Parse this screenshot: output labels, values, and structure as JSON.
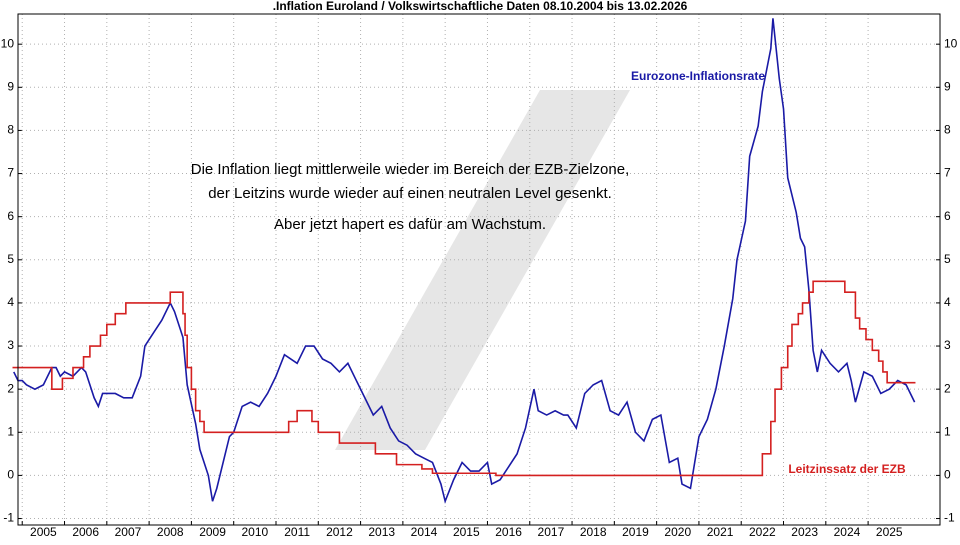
{
  "chart_data": {
    "type": "line",
    "title": ".Inflation Euroland / Volkswirtschaftliche Daten 08.10.2004 bis 13.02.2026",
    "annotations": [
      "Die Inflation liegt mittlerweile wieder im Bereich der EZB-Zielzone,",
      "der Leitzins wurde wieder auf einen neutralen Level gesenkt.",
      "Aber jetzt hapert es dafür am Wachstum."
    ],
    "xlim": [
      2004.9,
      2026.7
    ],
    "xticks": [
      2005,
      2006,
      2007,
      2008,
      2009,
      2010,
      2011,
      2012,
      2013,
      2014,
      2015,
      2016,
      2017,
      2018,
      2019,
      2020,
      2021,
      2022,
      2023,
      2024,
      2025
    ],
    "ylim": [
      -1.15,
      10.7
    ],
    "yticks": [
      -1,
      0,
      1,
      2,
      3,
      4,
      5,
      6,
      7,
      8,
      9,
      10
    ],
    "grid": true,
    "series": [
      {
        "name": "Eurozone-Inflationsrate",
        "color": "#1a1aa6",
        "step": false,
        "x": [
          2004.8,
          2004.9,
          2005.0,
          2005.1,
          2005.3,
          2005.5,
          2005.7,
          2005.8,
          2005.9,
          2006.0,
          2006.2,
          2006.4,
          2006.5,
          2006.7,
          2006.8,
          2006.9,
          2007.2,
          2007.4,
          2007.6,
          2007.8,
          2007.9,
          2008.1,
          2008.3,
          2008.5,
          2008.6,
          2008.8,
          2008.9,
          2009.1,
          2009.2,
          2009.4,
          2009.5,
          2009.6,
          2009.8,
          2009.9,
          2010.0,
          2010.2,
          2010.4,
          2010.6,
          2010.8,
          2011.0,
          2011.2,
          2011.5,
          2011.7,
          2011.9,
          2012.1,
          2012.3,
          2012.5,
          2012.7,
          2012.9,
          2013.1,
          2013.3,
          2013.5,
          2013.7,
          2013.9,
          2014.1,
          2014.3,
          2014.5,
          2014.7,
          2014.9,
          2015.0,
          2015.2,
          2015.4,
          2015.6,
          2015.8,
          2016.0,
          2016.1,
          2016.3,
          2016.5,
          2016.7,
          2016.9,
          2017.1,
          2017.2,
          2017.4,
          2017.6,
          2017.8,
          2017.9,
          2018.1,
          2018.3,
          2018.5,
          2018.7,
          2018.9,
          2019.1,
          2019.3,
          2019.5,
          2019.7,
          2019.9,
          2020.1,
          2020.3,
          2020.5,
          2020.6,
          2020.8,
          2021.0,
          2021.2,
          2021.4,
          2021.6,
          2021.8,
          2021.9,
          2022.1,
          2022.2,
          2022.4,
          2022.5,
          2022.7,
          2022.75,
          2022.9,
          2023.0,
          2023.1,
          2023.3,
          2023.4,
          2023.5,
          2023.6,
          2023.7,
          2023.8,
          2023.9,
          2024.1,
          2024.3,
          2024.5,
          2024.6,
          2024.7,
          2024.9,
          2025.1,
          2025.3,
          2025.5,
          2025.7,
          2025.9,
          2026.1
        ],
        "values": [
          2.4,
          2.2,
          2.2,
          2.1,
          2.0,
          2.1,
          2.5,
          2.5,
          2.3,
          2.4,
          2.3,
          2.5,
          2.4,
          1.8,
          1.6,
          1.9,
          1.9,
          1.8,
          1.8,
          2.3,
          3.0,
          3.3,
          3.6,
          4.0,
          3.8,
          3.2,
          2.1,
          1.2,
          0.6,
          0.0,
          -0.6,
          -0.3,
          0.5,
          0.9,
          1.0,
          1.6,
          1.7,
          1.6,
          1.9,
          2.3,
          2.8,
          2.6,
          3.0,
          3.0,
          2.7,
          2.6,
          2.4,
          2.6,
          2.2,
          1.8,
          1.4,
          1.6,
          1.1,
          0.8,
          0.7,
          0.5,
          0.4,
          0.3,
          -0.2,
          -0.6,
          -0.1,
          0.3,
          0.1,
          0.1,
          0.3,
          -0.2,
          -0.1,
          0.2,
          0.5,
          1.1,
          2.0,
          1.5,
          1.4,
          1.5,
          1.4,
          1.4,
          1.1,
          1.9,
          2.1,
          2.2,
          1.5,
          1.4,
          1.7,
          1.0,
          0.8,
          1.3,
          1.4,
          0.3,
          0.4,
          -0.2,
          -0.3,
          0.9,
          1.3,
          2.0,
          3.0,
          4.1,
          5.0,
          5.9,
          7.4,
          8.1,
          8.9,
          9.9,
          10.6,
          9.2,
          8.5,
          6.9,
          6.1,
          5.5,
          5.3,
          4.3,
          2.9,
          2.4,
          2.9,
          2.6,
          2.4,
          2.6,
          2.2,
          1.7,
          2.4,
          2.3,
          1.9,
          2.0,
          2.2,
          2.1,
          1.7
        ]
      },
      {
        "name": "Leitzinssatz der EZB",
        "color": "#d42020",
        "step": true,
        "x": [
          2004.77,
          2005.7,
          2005.95,
          2006.2,
          2006.45,
          2006.6,
          2006.85,
          2007.0,
          2007.2,
          2007.45,
          2008.5,
          2008.8,
          2008.85,
          2008.9,
          2009.0,
          2009.1,
          2009.2,
          2009.3,
          2009.4,
          2011.3,
          2011.5,
          2011.85,
          2012.0,
          2012.5,
          2013.35,
          2013.85,
          2014.45,
          2014.7,
          2016.2,
          2022.5,
          2022.7,
          2022.8,
          2022.95,
          2023.1,
          2023.2,
          2023.35,
          2023.45,
          2023.6,
          2023.7,
          2024.45,
          2024.7,
          2024.8,
          2024.95,
          2025.1,
          2025.25,
          2025.35,
          2025.45,
          2026.12
        ],
        "values": [
          2.5,
          2.0,
          2.25,
          2.5,
          2.75,
          3.0,
          3.25,
          3.5,
          3.75,
          4.0,
          4.25,
          3.75,
          3.25,
          2.5,
          2.0,
          1.5,
          1.25,
          1.0,
          1.0,
          1.25,
          1.5,
          1.25,
          1.0,
          0.75,
          0.5,
          0.25,
          0.15,
          0.05,
          0.0,
          0.5,
          1.25,
          2.0,
          2.5,
          3.0,
          3.5,
          3.75,
          4.0,
          4.25,
          4.5,
          4.25,
          3.65,
          3.4,
          3.15,
          2.9,
          2.65,
          2.4,
          2.15,
          2.15
        ]
      }
    ]
  }
}
